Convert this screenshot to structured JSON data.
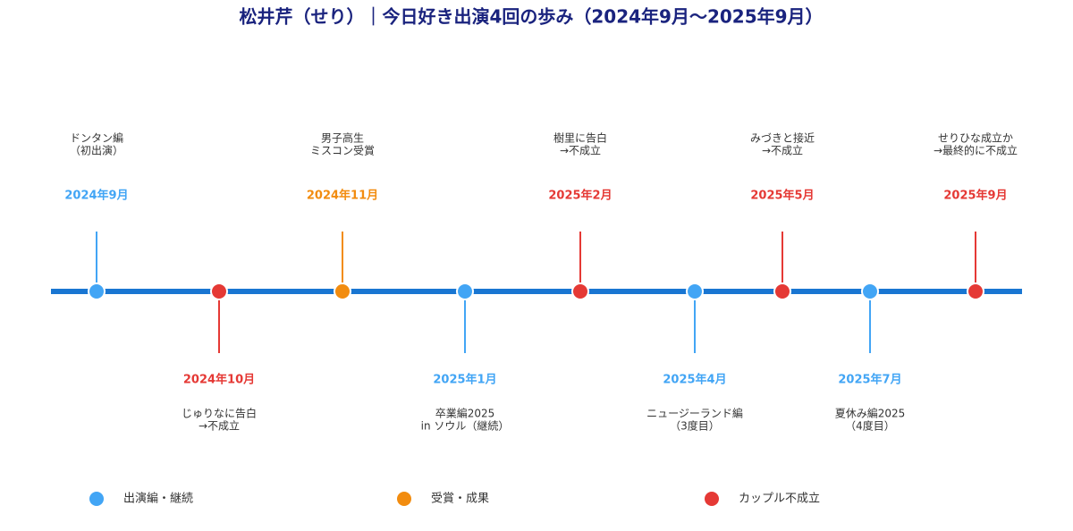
{
  "header": {
    "title": "松井芹（せり）｜今日好き出演4回の歩み（2024年9月〜2025年9月）"
  },
  "events": [
    {
      "date": "2024年9月",
      "lines": [
        "ドンタン編",
        "（初出演）"
      ]
    },
    {
      "date": "2024年10月",
      "lines": [
        "じゅりなに告白",
        "→不成立"
      ]
    },
    {
      "date": "2024年11月",
      "lines": [
        "男子高生",
        "ミスコン受賞"
      ]
    },
    {
      "date": "2025年1月",
      "lines": [
        "卒業編2025",
        "in ソウル（継続）"
      ]
    },
    {
      "date": "2025年2月",
      "lines": [
        "樹里に告白",
        "→不成立"
      ]
    },
    {
      "date": "2025年4月",
      "lines": [
        "ニュージーランド編",
        "（3度目）"
      ]
    },
    {
      "date": "2025年5月",
      "lines": [
        "みづきと接近",
        "→不成立"
      ]
    },
    {
      "date": "2025年7月",
      "lines": [
        "夏休み編2025",
        "（4度目）"
      ]
    },
    {
      "date": "2025年9月",
      "lines": [
        "せりひな成立か",
        "→最終的に不成立"
      ]
    }
  ],
  "legend": [
    "出演編・継続",
    "受賞・成果",
    "カップル不成立"
  ]
}
